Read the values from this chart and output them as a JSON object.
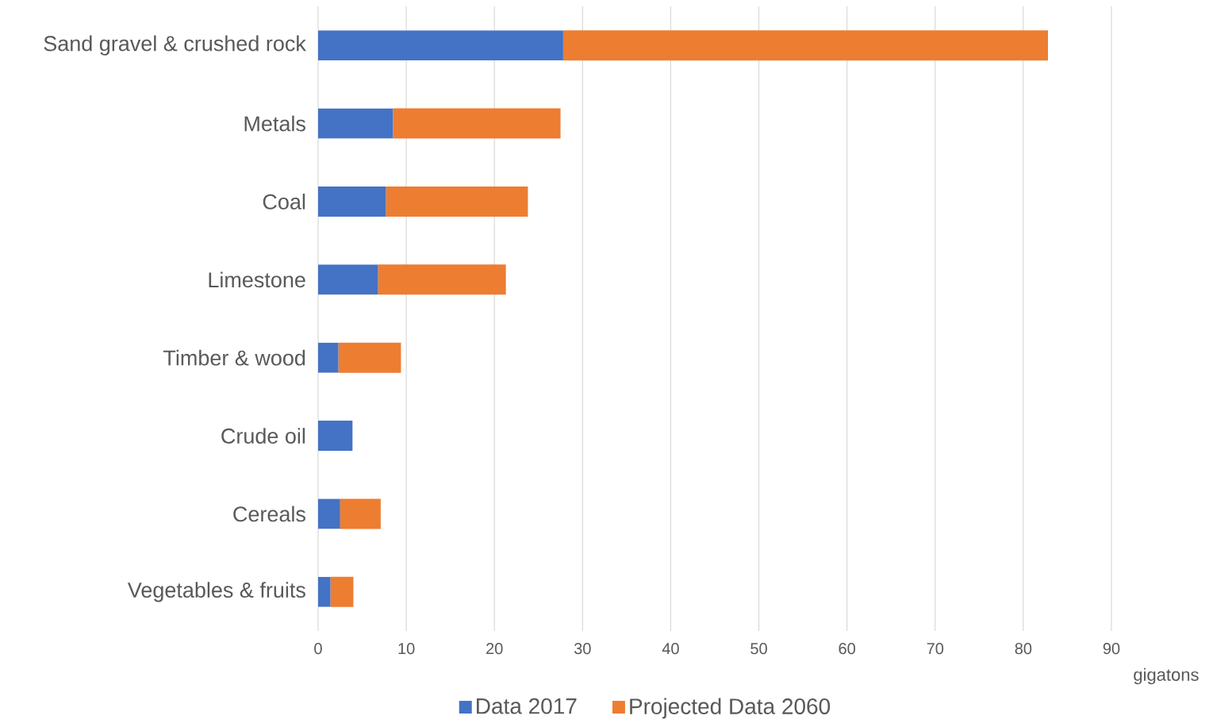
{
  "chart_data": {
    "type": "bar",
    "orientation": "horizontal",
    "stacked": true,
    "categories": [
      "Sand gravel & crushed rock",
      "Metals",
      "Coal",
      "Limestone",
      "Timber & wood",
      "Crude oil",
      "Cereals",
      "Vegetables & fruits"
    ],
    "series": [
      {
        "name": "Data 2017",
        "color": "#4472c4",
        "values": [
          27.8,
          8.5,
          7.7,
          6.8,
          2.3,
          3.9,
          2.5,
          1.4
        ]
      },
      {
        "name": "Projected Data 2060",
        "color": "#ed7d31",
        "values": [
          55.0,
          19.0,
          16.1,
          14.5,
          7.1,
          null,
          4.6,
          2.6
        ]
      }
    ],
    "xlabel": "gigatons",
    "xlim": [
      0,
      90
    ],
    "xticks": [
      0,
      10,
      20,
      30,
      40,
      50,
      60,
      70,
      80,
      90
    ],
    "grid": "x",
    "legend": "bottom"
  }
}
